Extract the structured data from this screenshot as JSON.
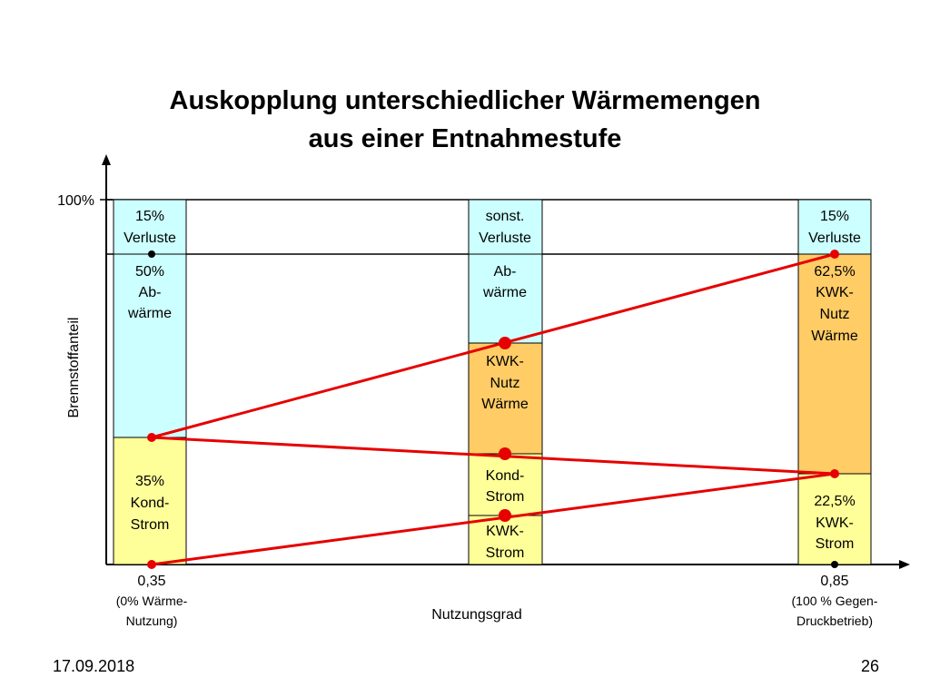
{
  "title": {
    "line1": "Auskopplung unterschiedlicher Wärmemengen",
    "line2": "aus einer Entnahmestufe"
  },
  "axes": {
    "y_label": "Brennstoffanteil",
    "y_tick": "100%",
    "x_label": "Nutzungsgrad"
  },
  "x_ticks": [
    {
      "value": "0,35",
      "note1": "(0% Wärme-",
      "note2": "Nutzung)"
    },
    {
      "value": "0,85",
      "note1": "(100 % Gegen-",
      "note2": "Druckbetrieb)"
    }
  ],
  "bars": {
    "left": {
      "top": [
        "15%",
        "Verluste"
      ],
      "middle": [
        "50%",
        "Ab-",
        "wärme"
      ],
      "bottom": [
        "35%",
        "Kond-",
        "Strom"
      ]
    },
    "center": {
      "top": [
        "sonst.",
        "Verluste"
      ],
      "upper": [
        "Ab-",
        "wärme"
      ],
      "mid": [
        "KWK-",
        "Nutz",
        "Wärme"
      ],
      "lower": [
        "Kond-",
        "Strom"
      ],
      "bottom": [
        "KWK-",
        "Strom"
      ]
    },
    "right": {
      "top": [
        "15%",
        "Verluste"
      ],
      "middle": [
        "62,5%",
        "KWK-",
        "Nutz",
        "Wärme"
      ],
      "bottom": [
        "22,5%",
        "KWK-",
        "Strom"
      ]
    }
  },
  "colors": {
    "cyan": "#ccffff",
    "yellow": "#ffff99",
    "orange": "#ffcc66",
    "red_line": "#e60000"
  },
  "footer": {
    "date": "17.09.2018",
    "page": "26"
  }
}
